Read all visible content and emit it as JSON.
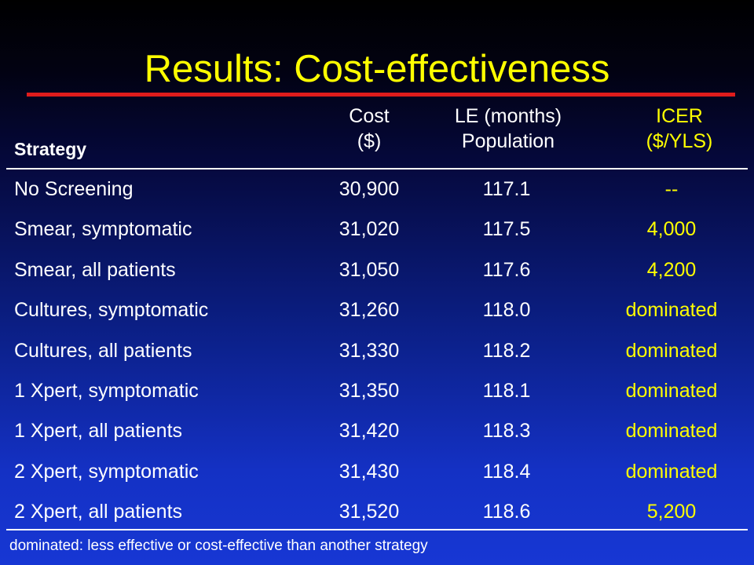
{
  "slide": {
    "title": "Results: Cost-effectiveness",
    "colors": {
      "title": "#ffff00",
      "title_rule": "#e01c1c",
      "icer_text": "#ffff00",
      "body_text": "#ffffff",
      "background_top": "#000000",
      "background_bottom": "#1737d4"
    }
  },
  "table": {
    "headers": {
      "strategy": "Strategy",
      "cost_line1": "Cost",
      "cost_line2": "($)",
      "le_line1": "LE (months)",
      "le_line2": "Population",
      "icer_line1": "ICER",
      "icer_line2": "($/YLS)"
    },
    "rows": [
      {
        "strategy": "No Screening",
        "cost": "30,900",
        "le": "117.1",
        "icer": "--"
      },
      {
        "strategy": "Smear, symptomatic",
        "cost": "31,020",
        "le": "117.5",
        "icer": "4,000"
      },
      {
        "strategy": "Smear, all patients",
        "cost": "31,050",
        "le": "117.6",
        "icer": "4,200"
      },
      {
        "strategy": "Cultures, symptomatic",
        "cost": "31,260",
        "le": "118.0",
        "icer": "dominated"
      },
      {
        "strategy": "Cultures, all patients",
        "cost": "31,330",
        "le": "118.2",
        "icer": "dominated"
      },
      {
        "strategy": "1 Xpert, symptomatic",
        "cost": "31,350",
        "le": "118.1",
        "icer": "dominated"
      },
      {
        "strategy": "1 Xpert, all patients",
        "cost": "31,420",
        "le": "118.3",
        "icer": "dominated"
      },
      {
        "strategy": "2 Xpert, symptomatic",
        "cost": "31,430",
        "le": "118.4",
        "icer": "dominated"
      },
      {
        "strategy": "2 Xpert, all patients",
        "cost": "31,520",
        "le": "118.6",
        "icer": "5,200"
      }
    ]
  },
  "footnote": "dominated: less effective or cost-effective than another strategy"
}
